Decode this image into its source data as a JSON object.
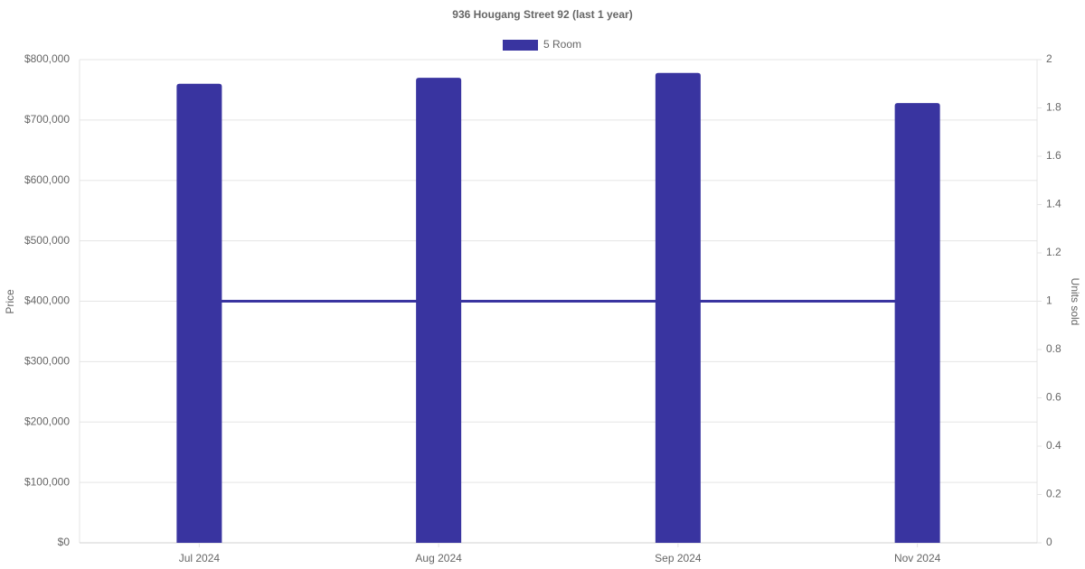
{
  "chart_data": {
    "type": "bar",
    "title": "936 Hougang Street 92 (last 1 year)",
    "categories": [
      "Jul 2024",
      "Aug 2024",
      "Sep 2024",
      "Nov 2024"
    ],
    "series": [
      {
        "name": "5 Room",
        "type": "bar",
        "color": "#3934a0",
        "values": [
          760000,
          770000,
          778000,
          728000
        ]
      },
      {
        "type": "line",
        "axis": "y2",
        "color": "#3934a0",
        "values": [
          1,
          1,
          1,
          1
        ]
      }
    ],
    "ylabel": "Price",
    "y2label": "Units sold",
    "ylim": [
      0,
      800000
    ],
    "yticks": [
      {
        "value": 0,
        "label": "$0"
      },
      {
        "value": 100000,
        "label": "$100,000"
      },
      {
        "value": 200000,
        "label": "$200,000"
      },
      {
        "value": 300000,
        "label": "$300,000"
      },
      {
        "value": 400000,
        "label": "$400,000"
      },
      {
        "value": 500000,
        "label": "$500,000"
      },
      {
        "value": 600000,
        "label": "$600,000"
      },
      {
        "value": 700000,
        "label": "$700,000"
      },
      {
        "value": 800000,
        "label": "$800,000"
      }
    ],
    "y2lim": [
      0,
      2
    ],
    "y2ticks": [
      0,
      0.2,
      0.4,
      0.6,
      0.8,
      1,
      1.2,
      1.4,
      1.6,
      1.8,
      2
    ],
    "grid": true,
    "legend": "top"
  }
}
